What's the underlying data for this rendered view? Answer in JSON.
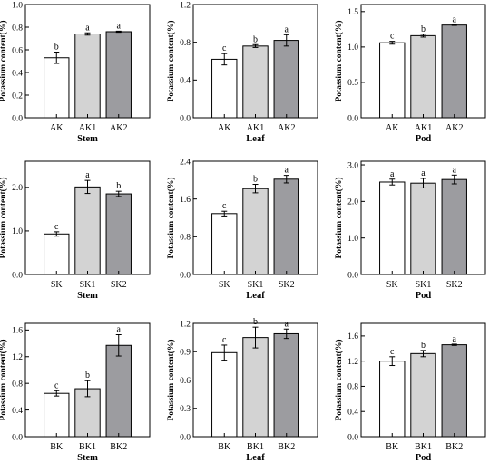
{
  "colors": {
    "bar_colors": [
      "#ffffff",
      "#d3d3d3",
      "#9c9ca0"
    ],
    "stroke": "#000000"
  },
  "chart_data": [
    {
      "type": "bar",
      "ylabel": "Potassium content(%)",
      "xlabel": "Stem",
      "categories": [
        "AK",
        "AK1",
        "AK2"
      ],
      "values": [
        0.53,
        0.74,
        0.76
      ],
      "errors": [
        0.05,
        0.01,
        0.005
      ],
      "letters": [
        "b",
        "a",
        "a"
      ],
      "ylim": [
        0.0,
        1.0
      ],
      "yticks": [
        "0.0",
        "0.2",
        "0.4",
        "0.6",
        "0.8",
        "1.0"
      ]
    },
    {
      "type": "bar",
      "ylabel": "Potassium content(%)",
      "xlabel": "Leaf",
      "categories": [
        "AK",
        "AK1",
        "AK2"
      ],
      "values": [
        0.62,
        0.76,
        0.82
      ],
      "errors": [
        0.06,
        0.015,
        0.06
      ],
      "letters": [
        "c",
        "b",
        "a"
      ],
      "ylim": [
        0.0,
        1.2
      ],
      "yticks": [
        "0.0",
        "0.4",
        "0.8",
        "1.2"
      ]
    },
    {
      "type": "bar",
      "ylabel": "Potassium content(%)",
      "xlabel": "Pod",
      "categories": [
        "AK",
        "AK1",
        "AK2"
      ],
      "values": [
        1.06,
        1.16,
        1.31
      ],
      "errors": [
        0.02,
        0.02,
        0.005
      ],
      "letters": [
        "c",
        "b",
        "a"
      ],
      "ylim": [
        0.0,
        1.6
      ],
      "yticks": [
        "0.0",
        "0.5",
        "1.0",
        "1.5"
      ]
    },
    {
      "type": "bar",
      "ylabel": "Potassium content(%)",
      "xlabel": "Stem",
      "categories": [
        "SK",
        "SK1",
        "SK2"
      ],
      "values": [
        0.93,
        2.01,
        1.85
      ],
      "errors": [
        0.05,
        0.15,
        0.06
      ],
      "letters": [
        "c",
        "a",
        "b"
      ],
      "ylim": [
        0.0,
        2.6
      ],
      "yticks": [
        "0.0",
        "1.0",
        "2.0"
      ]
    },
    {
      "type": "bar",
      "ylabel": "Potassium content(%)",
      "xlabel": "Leaf",
      "categories": [
        "SK",
        "SK1",
        "SK2"
      ],
      "values": [
        1.29,
        1.82,
        2.02
      ],
      "errors": [
        0.05,
        0.09,
        0.08
      ],
      "letters": [
        "c",
        "b",
        "a"
      ],
      "ylim": [
        0.0,
        2.4
      ],
      "yticks": [
        "0.0",
        "0.8",
        "1.6",
        "2.4"
      ]
    },
    {
      "type": "bar",
      "ylabel": "Potassium content(%)",
      "xlabel": "Pod",
      "categories": [
        "SK",
        "SK1",
        "SK2"
      ],
      "values": [
        2.53,
        2.5,
        2.6
      ],
      "errors": [
        0.08,
        0.13,
        0.12
      ],
      "letters": [
        "a",
        "a",
        "a"
      ],
      "ylim": [
        0.0,
        3.1
      ],
      "yticks": [
        "0.0",
        "1.0",
        "2.0",
        "3.0"
      ]
    },
    {
      "type": "bar",
      "ylabel": "Potassium content(%)",
      "xlabel": "Stem",
      "categories": [
        "BK",
        "BK1",
        "BK2"
      ],
      "values": [
        0.65,
        0.72,
        1.37
      ],
      "errors": [
        0.04,
        0.12,
        0.16
      ],
      "letters": [
        "c",
        "b",
        "a"
      ],
      "ylim": [
        0.0,
        1.7
      ],
      "yticks": [
        "0.0",
        "0.4",
        "0.8",
        "1.2",
        "1.6"
      ]
    },
    {
      "type": "bar",
      "ylabel": "Potassium content(%)",
      "xlabel": "Leaf",
      "categories": [
        "BK",
        "BK1",
        "BK2"
      ],
      "values": [
        0.89,
        1.05,
        1.09
      ],
      "errors": [
        0.08,
        0.11,
        0.05
      ],
      "letters": [
        "c",
        "b",
        "a"
      ],
      "ylim": [
        0.0,
        1.2
      ],
      "yticks": [
        "0.0",
        "0.3",
        "0.6",
        "0.9",
        "1.2"
      ]
    },
    {
      "type": "bar",
      "ylabel": "Potassium content(%)",
      "xlabel": "Pod",
      "categories": [
        "BK",
        "BK1",
        "BK2"
      ],
      "values": [
        1.2,
        1.32,
        1.46
      ],
      "errors": [
        0.07,
        0.05,
        0.01
      ],
      "letters": [
        "c",
        "b",
        "a"
      ],
      "ylim": [
        0.0,
        1.8
      ],
      "yticks": [
        "0.0",
        "0.4",
        "0.8",
        "1.2",
        "1.6"
      ]
    }
  ]
}
